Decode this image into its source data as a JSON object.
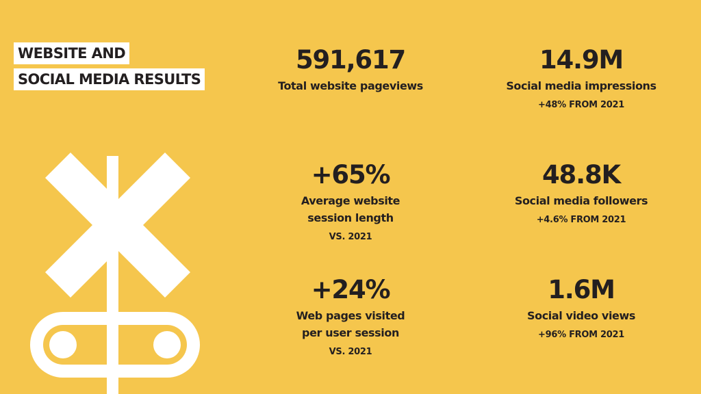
{
  "header": {
    "title_line1": "WEBSITE AND",
    "title_line2": "SOCIAL MEDIA RESULTS"
  },
  "illustration": {
    "icon": "railroad-crossing-icon",
    "color": "#ffffff"
  },
  "colors": {
    "background": "#f5c64d",
    "text": "#231f20"
  },
  "stats": [
    {
      "value": "591,617",
      "label_lines": [
        "Total website pageviews"
      ],
      "note": ""
    },
    {
      "value": "+65%",
      "label_lines": [
        "Average website",
        "session length"
      ],
      "note": "VS. 2021"
    },
    {
      "value": "+24%",
      "label_lines": [
        "Web pages visited",
        "per user session"
      ],
      "note": "VS. 2021"
    },
    {
      "value": "14.9M",
      "label_lines": [
        "Social media impressions"
      ],
      "note": "+48% FROM 2021"
    },
    {
      "value": "48.8K",
      "label_lines": [
        "Social media followers"
      ],
      "note": "+4.6% FROM 2021"
    },
    {
      "value": "1.6M",
      "label_lines": [
        "Social video views"
      ],
      "note": "+96% FROM 2021"
    }
  ]
}
